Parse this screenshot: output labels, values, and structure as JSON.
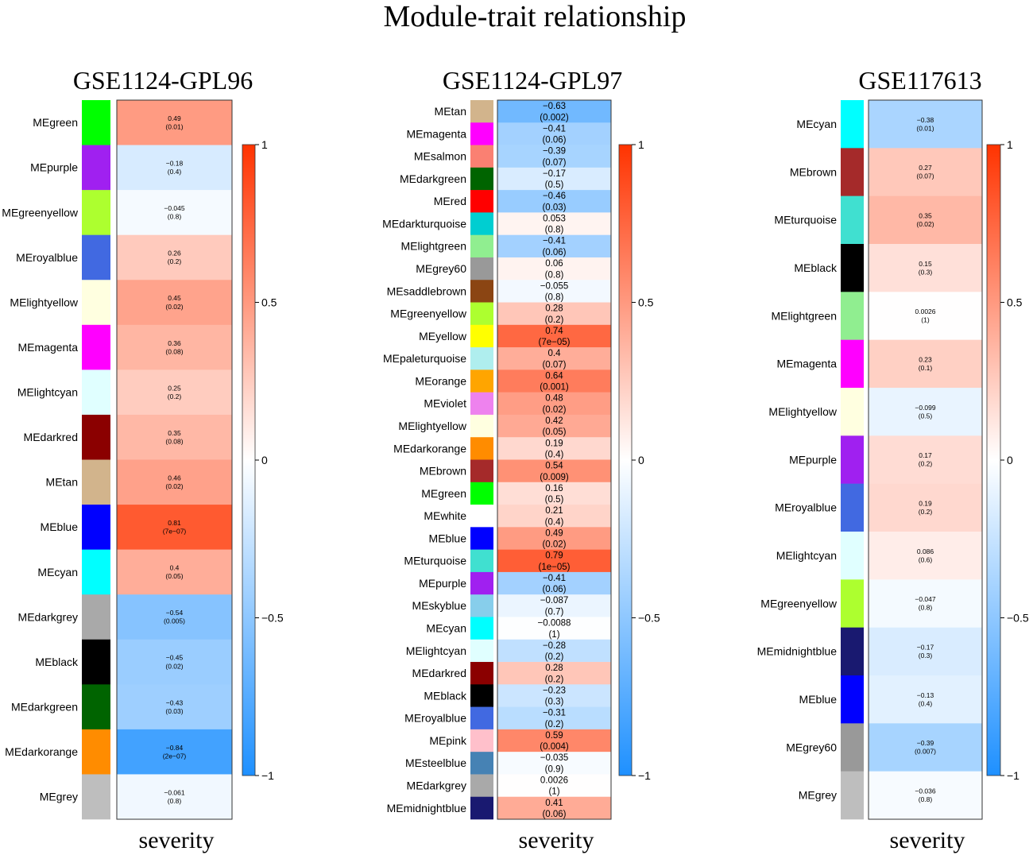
{
  "figure": {
    "title": "Module-trait relationship"
  },
  "colors": {
    "negative": "#1E90FF",
    "zero": "#FFFFFF",
    "positive": "#FF3300"
  },
  "chart_data": [
    {
      "type": "heatmap",
      "title": "GSE1124-GPL96",
      "xlabel": "severity",
      "colorbar": {
        "min": -1,
        "max": 1,
        "ticks": [
          "1",
          "0.5",
          "0",
          "−0.5",
          "−1"
        ]
      },
      "rows": [
        {
          "module": "MEgreen",
          "swatch": "#00FF00",
          "cor": 0.49,
          "cor_label": "0.49",
          "p_label": "(0.01)"
        },
        {
          "module": "MEpurple",
          "swatch": "#A020F0",
          "cor": -0.18,
          "cor_label": "−0.18",
          "p_label": "(0.4)"
        },
        {
          "module": "MEgreenyellow",
          "swatch": "#ADFF2F",
          "cor": -0.045,
          "cor_label": "−0.045",
          "p_label": "(0.8)"
        },
        {
          "module": "MEroyalblue",
          "swatch": "#4169E1",
          "cor": 0.26,
          "cor_label": "0.26",
          "p_label": "(0.2)"
        },
        {
          "module": "MElightyellow",
          "swatch": "#FFFFE0",
          "cor": 0.45,
          "cor_label": "0.45",
          "p_label": "(0.02)"
        },
        {
          "module": "MEmagenta",
          "swatch": "#FF00FF",
          "cor": 0.36,
          "cor_label": "0.36",
          "p_label": "(0.08)"
        },
        {
          "module": "MElightcyan",
          "swatch": "#E0FFFF",
          "cor": 0.25,
          "cor_label": "0.25",
          "p_label": "(0.2)"
        },
        {
          "module": "MEdarkred",
          "swatch": "#8B0000",
          "cor": 0.35,
          "cor_label": "0.35",
          "p_label": "(0.08)"
        },
        {
          "module": "MEtan",
          "swatch": "#D2B48C",
          "cor": 0.46,
          "cor_label": "0.46",
          "p_label": "(0.02)"
        },
        {
          "module": "MEblue",
          "swatch": "#0000FF",
          "cor": 0.81,
          "cor_label": "0.81",
          "p_label": "(7e−07)"
        },
        {
          "module": "MEcyan",
          "swatch": "#00FFFF",
          "cor": 0.4,
          "cor_label": "0.4",
          "p_label": "(0.05)"
        },
        {
          "module": "MEdarkgrey",
          "swatch": "#A9A9A9",
          "cor": -0.54,
          "cor_label": "−0.54",
          "p_label": "(0.005)"
        },
        {
          "module": "MEblack",
          "swatch": "#000000",
          "cor": -0.45,
          "cor_label": "−0.45",
          "p_label": "(0.02)"
        },
        {
          "module": "MEdarkgreen",
          "swatch": "#006400",
          "cor": -0.43,
          "cor_label": "−0.43",
          "p_label": "(0.03)"
        },
        {
          "module": "MEdarkorange",
          "swatch": "#FF8C00",
          "cor": -0.84,
          "cor_label": "−0.84",
          "p_label": "(2e−07)"
        },
        {
          "module": "MEgrey",
          "swatch": "#BEBEBE",
          "cor": -0.061,
          "cor_label": "−0.061",
          "p_label": "(0.8)"
        }
      ]
    },
    {
      "type": "heatmap",
      "title": "GSE1124-GPL97",
      "xlabel": "severity",
      "colorbar": {
        "min": -1,
        "max": 1,
        "ticks": [
          "1",
          "0.5",
          "0",
          "−0.5",
          "−1"
        ]
      },
      "rows": [
        {
          "module": "MEtan",
          "swatch": "#D2B48C",
          "cor": -0.63,
          "cor_label": "−0.63",
          "p_label": "(0.002)"
        },
        {
          "module": "MEmagenta",
          "swatch": "#FF00FF",
          "cor": -0.41,
          "cor_label": "−0.41",
          "p_label": "(0.06)"
        },
        {
          "module": "MEsalmon",
          "swatch": "#FA8072",
          "cor": -0.39,
          "cor_label": "−0.39",
          "p_label": "(0.07)"
        },
        {
          "module": "MEdarkgreen",
          "swatch": "#006400",
          "cor": -0.17,
          "cor_label": "−0.17",
          "p_label": "(0.5)"
        },
        {
          "module": "MEred",
          "swatch": "#FF0000",
          "cor": -0.46,
          "cor_label": "−0.46",
          "p_label": "(0.03)"
        },
        {
          "module": "MEdarkturquoise",
          "swatch": "#00CED1",
          "cor": 0.053,
          "cor_label": "0.053",
          "p_label": "(0.8)"
        },
        {
          "module": "MElightgreen",
          "swatch": "#90EE90",
          "cor": -0.41,
          "cor_label": "−0.41",
          "p_label": "(0.06)"
        },
        {
          "module": "MEgrey60",
          "swatch": "#999999",
          "cor": 0.06,
          "cor_label": "0.06",
          "p_label": "(0.8)"
        },
        {
          "module": "MEsaddlebrown",
          "swatch": "#8B4513",
          "cor": -0.055,
          "cor_label": "−0.055",
          "p_label": "(0.8)"
        },
        {
          "module": "MEgreenyellow",
          "swatch": "#ADFF2F",
          "cor": 0.28,
          "cor_label": "0.28",
          "p_label": "(0.2)"
        },
        {
          "module": "MEyellow",
          "swatch": "#FFFF00",
          "cor": 0.74,
          "cor_label": "0.74",
          "p_label": "(7e−05)"
        },
        {
          "module": "MEpaleturquoise",
          "swatch": "#AFEEEE",
          "cor": 0.4,
          "cor_label": "0.4",
          "p_label": "(0.07)"
        },
        {
          "module": "MEorange",
          "swatch": "#FFA500",
          "cor": 0.64,
          "cor_label": "0.64",
          "p_label": "(0.001)"
        },
        {
          "module": "MEviolet",
          "swatch": "#EE82EE",
          "cor": 0.48,
          "cor_label": "0.48",
          "p_label": "(0.02)"
        },
        {
          "module": "MElightyellow",
          "swatch": "#FFFFE0",
          "cor": 0.42,
          "cor_label": "0.42",
          "p_label": "(0.05)"
        },
        {
          "module": "MEdarkorange",
          "swatch": "#FF8C00",
          "cor": 0.19,
          "cor_label": "0.19",
          "p_label": "(0.4)"
        },
        {
          "module": "MEbrown",
          "swatch": "#A52A2A",
          "cor": 0.54,
          "cor_label": "0.54",
          "p_label": "(0.009)"
        },
        {
          "module": "MEgreen",
          "swatch": "#00FF00",
          "cor": 0.16,
          "cor_label": "0.16",
          "p_label": "(0.5)"
        },
        {
          "module": "MEwhite",
          "swatch": "#FFFFFF",
          "cor": 0.21,
          "cor_label": "0.21",
          "p_label": "(0.4)"
        },
        {
          "module": "MEblue",
          "swatch": "#0000FF",
          "cor": 0.49,
          "cor_label": "0.49",
          "p_label": "(0.02)"
        },
        {
          "module": "MEturquoise",
          "swatch": "#40E0D0",
          "cor": 0.79,
          "cor_label": "0.79",
          "p_label": "(1e−05)"
        },
        {
          "module": "MEpurple",
          "swatch": "#A020F0",
          "cor": -0.41,
          "cor_label": "−0.41",
          "p_label": "(0.06)"
        },
        {
          "module": "MEskyblue",
          "swatch": "#87CEEB",
          "cor": -0.087,
          "cor_label": "−0.087",
          "p_label": "(0.7)"
        },
        {
          "module": "MEcyan",
          "swatch": "#00FFFF",
          "cor": -0.0088,
          "cor_label": "−0.0088",
          "p_label": "(1)"
        },
        {
          "module": "MElightcyan",
          "swatch": "#E0FFFF",
          "cor": -0.28,
          "cor_label": "−0.28",
          "p_label": "(0.2)"
        },
        {
          "module": "MEdarkred",
          "swatch": "#8B0000",
          "cor": 0.28,
          "cor_label": "0.28",
          "p_label": "(0.2)"
        },
        {
          "module": "MEblack",
          "swatch": "#000000",
          "cor": -0.23,
          "cor_label": "−0.23",
          "p_label": "(0.3)"
        },
        {
          "module": "MEroyalblue",
          "swatch": "#4169E1",
          "cor": -0.31,
          "cor_label": "−0.31",
          "p_label": "(0.2)"
        },
        {
          "module": "MEpink",
          "swatch": "#FFC0CB",
          "cor": 0.59,
          "cor_label": "0.59",
          "p_label": "(0.004)"
        },
        {
          "module": "MEsteelblue",
          "swatch": "#4682B4",
          "cor": -0.035,
          "cor_label": "−0.035",
          "p_label": "(0.9)"
        },
        {
          "module": "MEdarkgrey",
          "swatch": "#A9A9A9",
          "cor": 0.0026,
          "cor_label": "0.0026",
          "p_label": "(1)"
        },
        {
          "module": "MEmidnightblue",
          "swatch": "#191970",
          "cor": 0.41,
          "cor_label": "0.41",
          "p_label": "(0.06)"
        }
      ]
    },
    {
      "type": "heatmap",
      "title": "GSE117613",
      "xlabel": "severity",
      "colorbar": {
        "min": -1,
        "max": 1,
        "ticks": [
          "1",
          "0.5",
          "0",
          "−0.5",
          "−1"
        ]
      },
      "rows": [
        {
          "module": "MEcyan",
          "swatch": "#00FFFF",
          "cor": -0.38,
          "cor_label": "−0.38",
          "p_label": "(0.01)"
        },
        {
          "module": "MEbrown",
          "swatch": "#A52A2A",
          "cor": 0.27,
          "cor_label": "0.27",
          "p_label": "(0.07)"
        },
        {
          "module": "MEturquoise",
          "swatch": "#40E0D0",
          "cor": 0.35,
          "cor_label": "0.35",
          "p_label": "(0.02)"
        },
        {
          "module": "MEblack",
          "swatch": "#000000",
          "cor": 0.15,
          "cor_label": "0.15",
          "p_label": "(0.3)"
        },
        {
          "module": "MElightgreen",
          "swatch": "#90EE90",
          "cor": 0.0026,
          "cor_label": "0.0026",
          "p_label": "(1)"
        },
        {
          "module": "MEmagenta",
          "swatch": "#FF00FF",
          "cor": 0.23,
          "cor_label": "0.23",
          "p_label": "(0.1)"
        },
        {
          "module": "MElightyellow",
          "swatch": "#FFFFE0",
          "cor": -0.099,
          "cor_label": "−0.099",
          "p_label": "(0.5)"
        },
        {
          "module": "MEpurple",
          "swatch": "#A020F0",
          "cor": 0.17,
          "cor_label": "0.17",
          "p_label": "(0.2)"
        },
        {
          "module": "MEroyalblue",
          "swatch": "#4169E1",
          "cor": 0.19,
          "cor_label": "0.19",
          "p_label": "(0.2)"
        },
        {
          "module": "MElightcyan",
          "swatch": "#E0FFFF",
          "cor": 0.086,
          "cor_label": "0.086",
          "p_label": "(0.6)"
        },
        {
          "module": "MEgreenyellow",
          "swatch": "#ADFF2F",
          "cor": -0.047,
          "cor_label": "−0.047",
          "p_label": "(0.8)"
        },
        {
          "module": "MEmidnightblue",
          "swatch": "#191970",
          "cor": -0.17,
          "cor_label": "−0.17",
          "p_label": "(0.3)"
        },
        {
          "module": "MEblue",
          "swatch": "#0000FF",
          "cor": -0.13,
          "cor_label": "−0.13",
          "p_label": "(0.4)"
        },
        {
          "module": "MEgrey60",
          "swatch": "#999999",
          "cor": -0.39,
          "cor_label": "−0.39",
          "p_label": "(0.007)"
        },
        {
          "module": "MEgrey",
          "swatch": "#BEBEBE",
          "cor": -0.036,
          "cor_label": "−0.036",
          "p_label": "(0.8)"
        }
      ]
    }
  ]
}
